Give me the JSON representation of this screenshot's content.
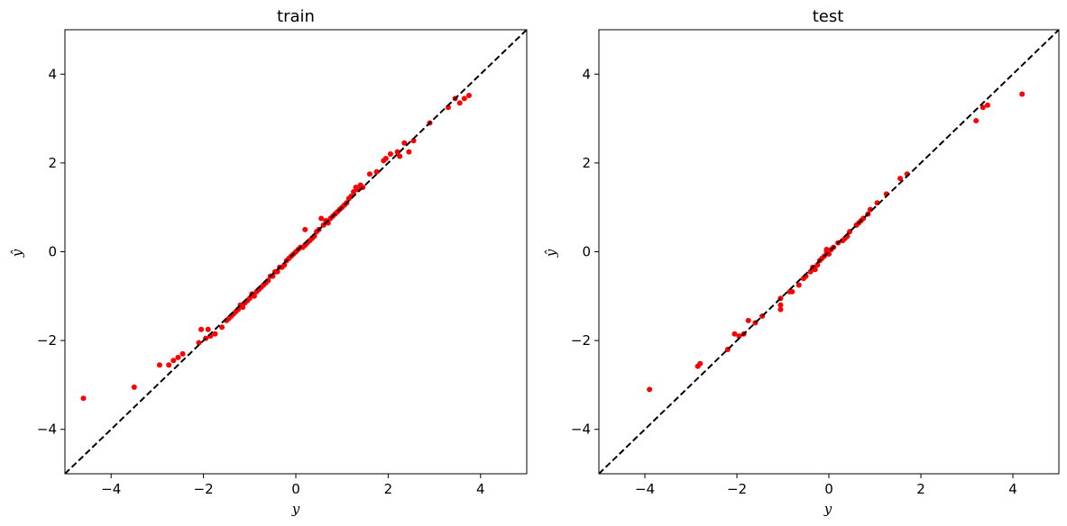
{
  "chart_data": [
    {
      "type": "scatter",
      "title": "train",
      "xlabel": "y",
      "ylabel": "ŷ",
      "xlim": [
        -5,
        5
      ],
      "ylim": [
        -5,
        5
      ],
      "xticks": [
        -4,
        -2,
        0,
        2,
        4
      ],
      "yticks": [
        -4,
        -2,
        0,
        2,
        4
      ],
      "tick_labels": [
        "−4",
        "−2",
        "0",
        "2",
        "4"
      ],
      "reference_line": {
        "style": "dashed",
        "color": "#000000",
        "from": [
          -5,
          -5
        ],
        "to": [
          5,
          5
        ]
      },
      "point_color": "#ff0000",
      "points": [
        [
          -4.6,
          -3.3
        ],
        [
          -3.5,
          -3.05
        ],
        [
          -2.95,
          -2.55
        ],
        [
          -2.75,
          -2.55
        ],
        [
          -2.65,
          -2.45
        ],
        [
          -2.55,
          -2.38
        ],
        [
          -2.45,
          -2.3
        ],
        [
          -2.1,
          -2.05
        ],
        [
          -2.05,
          -1.75
        ],
        [
          -1.95,
          -1.95
        ],
        [
          -1.9,
          -1.75
        ],
        [
          -1.85,
          -1.9
        ],
        [
          -1.75,
          -1.85
        ],
        [
          -1.6,
          -1.7
        ],
        [
          -1.5,
          -1.55
        ],
        [
          -1.45,
          -1.5
        ],
        [
          -1.4,
          -1.45
        ],
        [
          -1.35,
          -1.4
        ],
        [
          -1.3,
          -1.35
        ],
        [
          -1.25,
          -1.3
        ],
        [
          -1.2,
          -1.2
        ],
        [
          -1.15,
          -1.25
        ],
        [
          -1.1,
          -1.15
        ],
        [
          -1.05,
          -1.1
        ],
        [
          -1.0,
          -1.05
        ],
        [
          -0.95,
          -0.95
        ],
        [
          -0.9,
          -1.0
        ],
        [
          -0.85,
          -0.9
        ],
        [
          -0.8,
          -0.85
        ],
        [
          -0.75,
          -0.8
        ],
        [
          -0.7,
          -0.75
        ],
        [
          -0.65,
          -0.7
        ],
        [
          -0.6,
          -0.65
        ],
        [
          -0.55,
          -0.55
        ],
        [
          -0.5,
          -0.55
        ],
        [
          -0.45,
          -0.45
        ],
        [
          -0.4,
          -0.45
        ],
        [
          -0.35,
          -0.35
        ],
        [
          -0.3,
          -0.35
        ],
        [
          -0.25,
          -0.3
        ],
        [
          -0.2,
          -0.2
        ],
        [
          -0.15,
          -0.15
        ],
        [
          -0.1,
          -0.1
        ],
        [
          -0.05,
          -0.05
        ],
        [
          0.0,
          0.0
        ],
        [
          0.05,
          0.05
        ],
        [
          0.1,
          0.1
        ],
        [
          0.15,
          0.1
        ],
        [
          0.2,
          0.15
        ],
        [
          0.2,
          0.5
        ],
        [
          0.25,
          0.2
        ],
        [
          0.3,
          0.25
        ],
        [
          0.35,
          0.3
        ],
        [
          0.4,
          0.35
        ],
        [
          0.45,
          0.45
        ],
        [
          0.5,
          0.5
        ],
        [
          0.55,
          0.75
        ],
        [
          0.6,
          0.6
        ],
        [
          0.65,
          0.7
        ],
        [
          0.7,
          0.65
        ],
        [
          0.75,
          0.75
        ],
        [
          0.8,
          0.8
        ],
        [
          0.85,
          0.85
        ],
        [
          0.9,
          0.9
        ],
        [
          0.95,
          0.95
        ],
        [
          1.0,
          1.0
        ],
        [
          1.05,
          1.05
        ],
        [
          1.1,
          1.1
        ],
        [
          1.15,
          1.2
        ],
        [
          1.2,
          1.25
        ],
        [
          1.25,
          1.35
        ],
        [
          1.3,
          1.45
        ],
        [
          1.35,
          1.4
        ],
        [
          1.4,
          1.5
        ],
        [
          1.45,
          1.45
        ],
        [
          1.6,
          1.75
        ],
        [
          1.75,
          1.8
        ],
        [
          1.9,
          2.05
        ],
        [
          1.95,
          2.1
        ],
        [
          2.05,
          2.2
        ],
        [
          2.2,
          2.25
        ],
        [
          2.25,
          2.15
        ],
        [
          2.35,
          2.45
        ],
        [
          2.45,
          2.25
        ],
        [
          2.55,
          2.5
        ],
        [
          2.9,
          2.9
        ],
        [
          3.3,
          3.25
        ],
        [
          3.45,
          3.45
        ],
        [
          3.55,
          3.35
        ],
        [
          3.65,
          3.45
        ],
        [
          3.75,
          3.52
        ]
      ]
    },
    {
      "type": "scatter",
      "title": "test",
      "xlabel": "y",
      "ylabel": "ŷ",
      "xlim": [
        -5,
        5
      ],
      "ylim": [
        -5,
        5
      ],
      "xticks": [
        -4,
        -2,
        0,
        2,
        4
      ],
      "yticks": [
        -4,
        -2,
        0,
        2,
        4
      ],
      "tick_labels": [
        "−4",
        "−2",
        "0",
        "2",
        "4"
      ],
      "reference_line": {
        "style": "dashed",
        "color": "#000000",
        "from": [
          -5,
          -5
        ],
        "to": [
          5,
          5
        ]
      },
      "point_color": "#ff0000",
      "points": [
        [
          -3.9,
          -3.1
        ],
        [
          -2.85,
          -2.58
        ],
        [
          -2.8,
          -2.52
        ],
        [
          -2.2,
          -2.2
        ],
        [
          -2.05,
          -1.85
        ],
        [
          -1.95,
          -1.9
        ],
        [
          -1.85,
          -1.85
        ],
        [
          -1.75,
          -1.55
        ],
        [
          -1.6,
          -1.6
        ],
        [
          -1.45,
          -1.45
        ],
        [
          -1.05,
          -1.05
        ],
        [
          -1.05,
          -1.2
        ],
        [
          -1.05,
          -1.3
        ],
        [
          -0.85,
          -0.9
        ],
        [
          -0.8,
          -0.9
        ],
        [
          -0.65,
          -0.75
        ],
        [
          -0.55,
          -0.6
        ],
        [
          -0.5,
          -0.55
        ],
        [
          -0.4,
          -0.45
        ],
        [
          -0.35,
          -0.35
        ],
        [
          -0.3,
          -0.4
        ],
        [
          -0.25,
          -0.3
        ],
        [
          -0.2,
          -0.2
        ],
        [
          -0.15,
          -0.15
        ],
        [
          -0.1,
          -0.1
        ],
        [
          -0.05,
          0.0
        ],
        [
          -0.05,
          0.05
        ],
        [
          0.0,
          -0.05
        ],
        [
          0.05,
          0.05
        ],
        [
          0.1,
          0.1
        ],
        [
          0.2,
          0.2
        ],
        [
          0.3,
          0.25
        ],
        [
          0.35,
          0.3
        ],
        [
          0.4,
          0.35
        ],
        [
          0.45,
          0.45
        ],
        [
          0.6,
          0.6
        ],
        [
          0.65,
          0.65
        ],
        [
          0.7,
          0.7
        ],
        [
          0.75,
          0.75
        ],
        [
          0.85,
          0.85
        ],
        [
          0.9,
          0.95
        ],
        [
          1.05,
          1.1
        ],
        [
          1.25,
          1.3
        ],
        [
          1.55,
          1.65
        ],
        [
          1.7,
          1.75
        ],
        [
          3.2,
          2.95
        ],
        [
          3.35,
          3.25
        ],
        [
          3.45,
          3.3
        ],
        [
          4.2,
          3.55
        ]
      ]
    }
  ]
}
